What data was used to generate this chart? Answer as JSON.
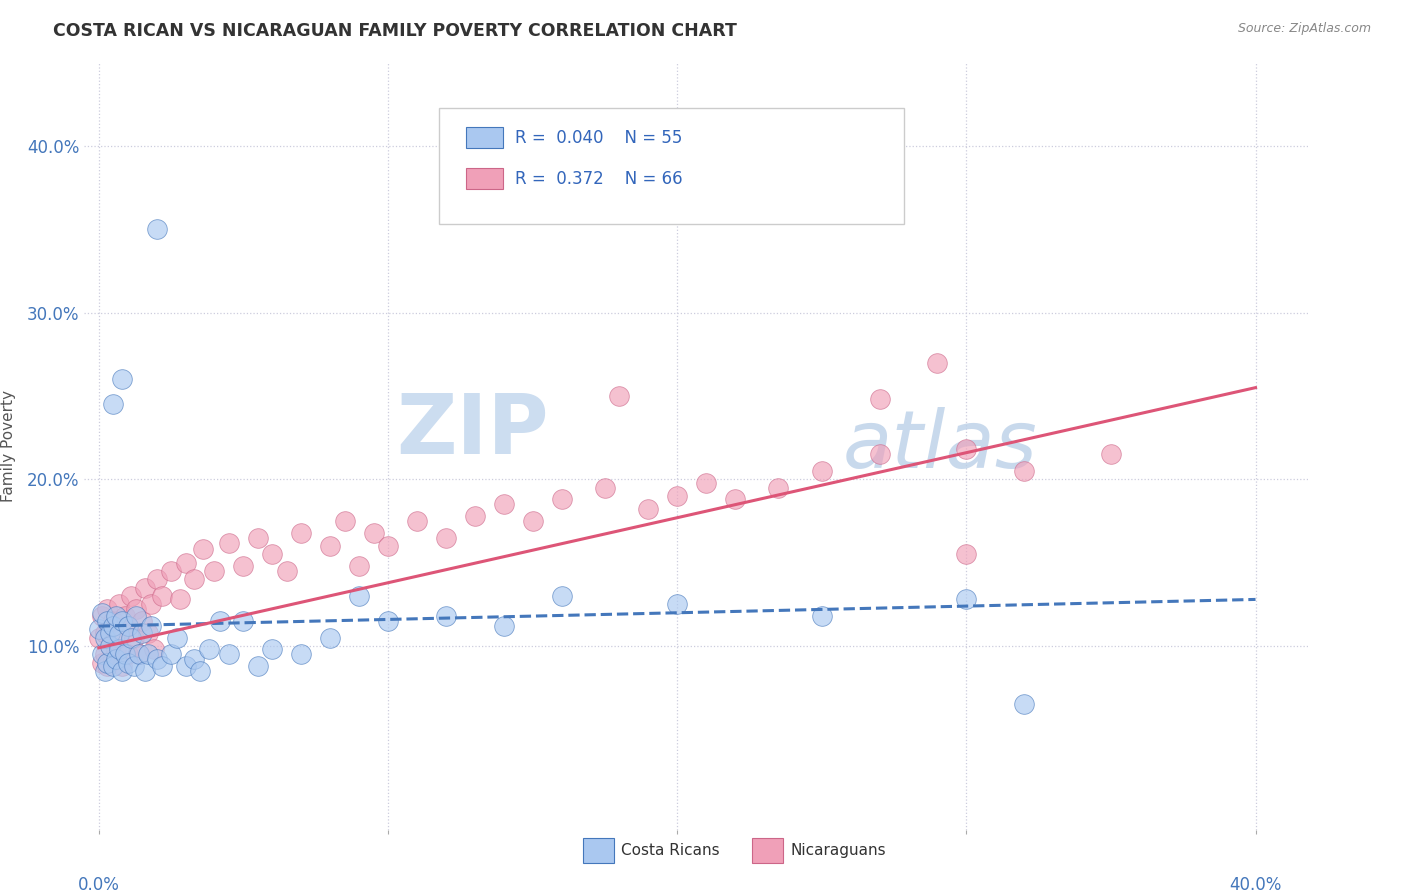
{
  "title": "COSTA RICAN VS NICARAGUAN FAMILY POVERTY CORRELATION CHART",
  "source": "Source: ZipAtlas.com",
  "ylabel": "Family Poverty",
  "costa_rican_color": "#aac8f0",
  "costa_rican_edge": "#6699cc",
  "nicaraguan_color": "#f0a0b8",
  "nicaraguan_edge": "#cc6688",
  "cr_line_color": "#4477bb",
  "nic_line_color": "#dd5577",
  "xmin": 0.0,
  "xmax": 0.4,
  "ymin": 0.03,
  "ymax": 0.43,
  "ytick_vals": [
    0.1,
    0.2,
    0.3,
    0.4
  ],
  "ytick_labels": [
    "10.0%",
    "20.0%",
    "30.0%",
    "40.0%"
  ],
  "grid_color": "#ccccdd",
  "watermark_zip_color": "#dde8f5",
  "watermark_atlas_color": "#c8d8ec",
  "legend_box_color": "#eeeeee",
  "cr_points_x": [
    0.0,
    0.001,
    0.001,
    0.002,
    0.002,
    0.003,
    0.003,
    0.004,
    0.004,
    0.005,
    0.005,
    0.006,
    0.006,
    0.007,
    0.007,
    0.008,
    0.008,
    0.009,
    0.01,
    0.01,
    0.011,
    0.012,
    0.013,
    0.014,
    0.015,
    0.016,
    0.017,
    0.018,
    0.02,
    0.022,
    0.025,
    0.027,
    0.03,
    0.033,
    0.035,
    0.038,
    0.042,
    0.045,
    0.05,
    0.055,
    0.06,
    0.07,
    0.08,
    0.09,
    0.1,
    0.12,
    0.14,
    0.16,
    0.2,
    0.25,
    0.3,
    0.02,
    0.008,
    0.005,
    0.32
  ],
  "cr_points_y": [
    0.11,
    0.095,
    0.12,
    0.085,
    0.105,
    0.09,
    0.115,
    0.1,
    0.108,
    0.088,
    0.112,
    0.092,
    0.118,
    0.098,
    0.107,
    0.085,
    0.115,
    0.095,
    0.09,
    0.112,
    0.105,
    0.088,
    0.118,
    0.095,
    0.108,
    0.085,
    0.095,
    0.112,
    0.092,
    0.088,
    0.095,
    0.105,
    0.088,
    0.092,
    0.085,
    0.098,
    0.115,
    0.095,
    0.115,
    0.088,
    0.098,
    0.095,
    0.105,
    0.13,
    0.115,
    0.118,
    0.112,
    0.13,
    0.125,
    0.118,
    0.128,
    0.35,
    0.26,
    0.245,
    0.065
  ],
  "nic_points_x": [
    0.0,
    0.001,
    0.001,
    0.002,
    0.002,
    0.003,
    0.003,
    0.004,
    0.005,
    0.005,
    0.006,
    0.007,
    0.007,
    0.008,
    0.009,
    0.01,
    0.01,
    0.011,
    0.012,
    0.013,
    0.014,
    0.015,
    0.016,
    0.017,
    0.018,
    0.019,
    0.02,
    0.022,
    0.025,
    0.028,
    0.03,
    0.033,
    0.036,
    0.04,
    0.045,
    0.05,
    0.055,
    0.06,
    0.065,
    0.07,
    0.08,
    0.085,
    0.09,
    0.095,
    0.1,
    0.11,
    0.12,
    0.13,
    0.14,
    0.15,
    0.16,
    0.175,
    0.19,
    0.2,
    0.21,
    0.22,
    0.235,
    0.25,
    0.27,
    0.3,
    0.32,
    0.35,
    0.29,
    0.18,
    0.27,
    0.3
  ],
  "nic_points_y": [
    0.105,
    0.09,
    0.118,
    0.095,
    0.108,
    0.088,
    0.122,
    0.1,
    0.092,
    0.115,
    0.098,
    0.105,
    0.125,
    0.088,
    0.118,
    0.095,
    0.112,
    0.13,
    0.105,
    0.122,
    0.095,
    0.115,
    0.135,
    0.108,
    0.125,
    0.098,
    0.14,
    0.13,
    0.145,
    0.128,
    0.15,
    0.14,
    0.158,
    0.145,
    0.162,
    0.148,
    0.165,
    0.155,
    0.145,
    0.168,
    0.16,
    0.175,
    0.148,
    0.168,
    0.16,
    0.175,
    0.165,
    0.178,
    0.185,
    0.175,
    0.188,
    0.195,
    0.182,
    0.19,
    0.198,
    0.188,
    0.195,
    0.205,
    0.215,
    0.218,
    0.205,
    0.215,
    0.27,
    0.25,
    0.248,
    0.155
  ],
  "cr_line_start_y": 0.112,
  "cr_line_end_y": 0.128,
  "nic_line_start_y": 0.099,
  "nic_line_end_y": 0.255
}
